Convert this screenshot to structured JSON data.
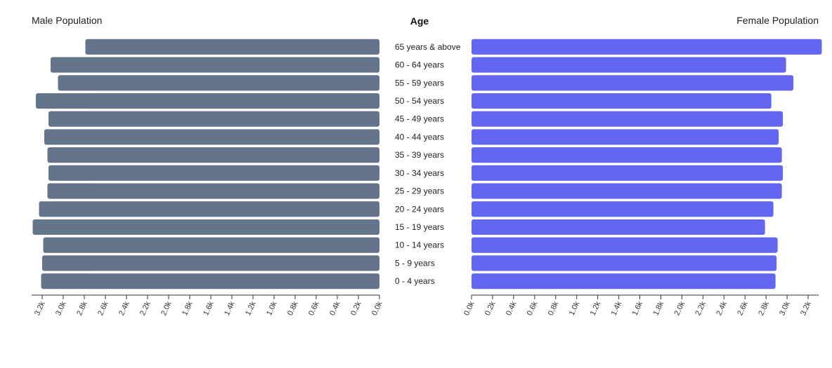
{
  "chart_data": {
    "type": "bar",
    "left_header": "Male Population",
    "center_header": "Age",
    "right_header": "Female Population",
    "categories": [
      "65 years & above",
      "60 - 64 years",
      "55 - 59 years",
      "50 - 54 years",
      "45 - 49 years",
      "40 - 44 years",
      "35 - 39 years",
      "30 - 34 years",
      "25 - 29 years",
      "20 - 24 years",
      "15 - 19 years",
      "10 - 14 years",
      "5 - 9 years",
      "0 - 4 years"
    ],
    "series": [
      {
        "values": [
          2790,
          3120,
          3050,
          3260,
          3140,
          3180,
          3150,
          3140,
          3150,
          3230,
          3290,
          3190,
          3200,
          3210
        ]
      },
      {
        "values": [
          3330,
          2990,
          3060,
          2850,
          2960,
          2920,
          2950,
          2960,
          2950,
          2870,
          2790,
          2910,
          2900,
          2890
        ]
      }
    ],
    "colors": [
      "#64748b",
      "#6366f1"
    ],
    "xlim": [
      0,
      3300
    ],
    "ticks": [
      0,
      200,
      400,
      600,
      800,
      1000,
      1200,
      1400,
      1600,
      1800,
      2000,
      2200,
      2400,
      2600,
      2800,
      3000,
      3200
    ],
    "tick_labels": [
      "0.0k",
      "0.2k",
      "0.4k",
      "0.6k",
      "0.8k",
      "1.0k",
      "1.2k",
      "1.4k",
      "1.6k",
      "1.8k",
      "2.0k",
      "2.2k",
      "2.4k",
      "2.6k",
      "2.8k",
      "3.0k",
      "3.2k"
    ]
  }
}
